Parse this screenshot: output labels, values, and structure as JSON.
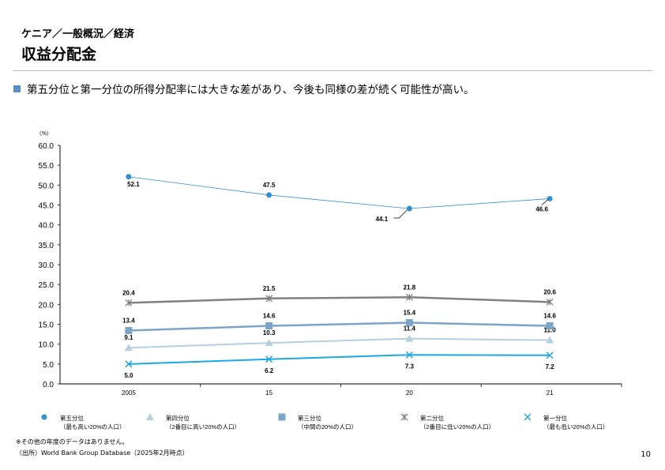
{
  "header": {
    "breadcrumb": "ケニア／一般概況／経済",
    "title": "収益分配金"
  },
  "summary": "第五分位と第一分位の所得分配率には大きな差があり、今後も同様の差が続く可能性が高い。",
  "chart_data": {
    "type": "line",
    "unit_label": "（%）",
    "categories": [
      "2005",
      "15",
      "20",
      "21"
    ],
    "ylim": [
      0,
      60
    ],
    "yticks": [
      "0.0",
      "5.0",
      "10.0",
      "15.0",
      "20.0",
      "25.0",
      "30.0",
      "35.0",
      "40.0",
      "45.0",
      "50.0",
      "55.0",
      "60.0"
    ],
    "grid": false,
    "legend_placement": "bottom",
    "series": [
      {
        "name": "第五分位",
        "sub": "（最も高い20%の人口）",
        "marker": "circle",
        "color": "#2e92d0",
        "values": [
          52.1,
          47.5,
          44.1,
          46.6
        ],
        "labels": [
          "52.1",
          "47.5",
          "44.1",
          "46.6"
        ]
      },
      {
        "name": "第四分位",
        "sub": "（2番目に高い20%の人口）",
        "marker": "triangle",
        "color": "#b4cfe0",
        "values": [
          9.1,
          10.3,
          11.4,
          11.0
        ],
        "labels": [
          "9.1",
          "10.3",
          "11.4",
          "11.0"
        ]
      },
      {
        "name": "第三分位",
        "sub": "（中間の20%の人口）",
        "marker": "square",
        "color": "#7ba4c8",
        "values": [
          13.4,
          14.6,
          15.4,
          14.6
        ],
        "labels": [
          "13.4",
          "14.6",
          "15.4",
          "14.6"
        ]
      },
      {
        "name": "第二分位",
        "sub": "（2番目に低い20%の人口）",
        "marker": "asterisk",
        "color": "#808080",
        "values": [
          20.4,
          21.5,
          21.8,
          20.6
        ],
        "labels": [
          "20.4",
          "21.5",
          "21.8",
          "20.6"
        ]
      },
      {
        "name": "第一分位",
        "sub": "（最も低い20%の人口）",
        "marker": "x",
        "color": "#1ba8e6",
        "values": [
          5.0,
          6.2,
          7.3,
          7.2
        ],
        "labels": [
          "5.0",
          "6.2",
          "7.3",
          "7.2"
        ]
      }
    ]
  },
  "footer": {
    "note": "※その他の年度のデータはありません。",
    "source": "（出所）World Bank Group Database（2025年2月時点）",
    "page": "10"
  }
}
